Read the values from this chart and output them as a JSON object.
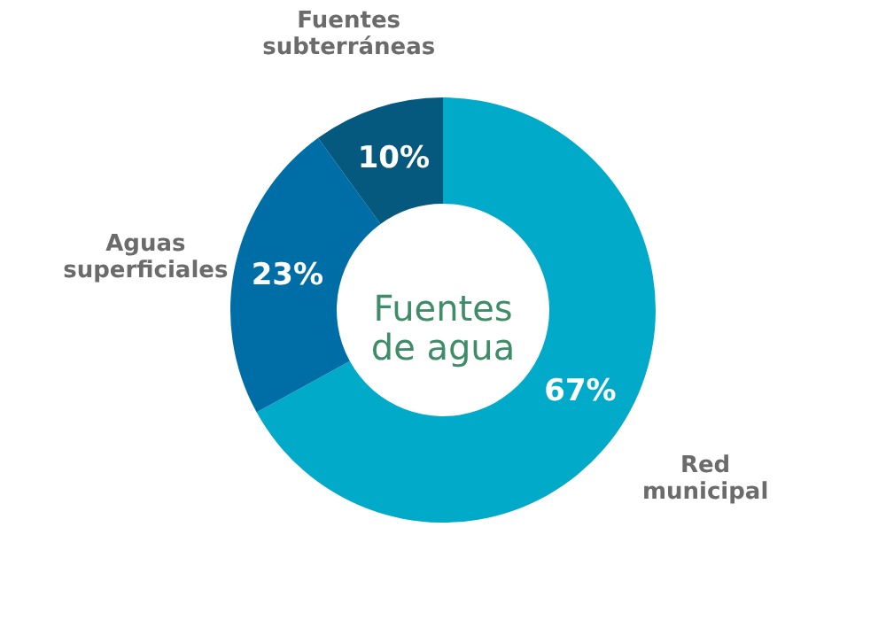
{
  "chart_data": {
    "type": "donut",
    "title": "Fuentes de agua",
    "categories": [
      "Red municipal",
      "Aguas superficiales",
      "Fuentes subterráneas"
    ],
    "values": [
      67,
      23,
      10
    ],
    "colors": [
      "#00aac8",
      "#006ea6",
      "#05587e"
    ],
    "value_labels": [
      "67%",
      "23%",
      "10%"
    ]
  }
}
